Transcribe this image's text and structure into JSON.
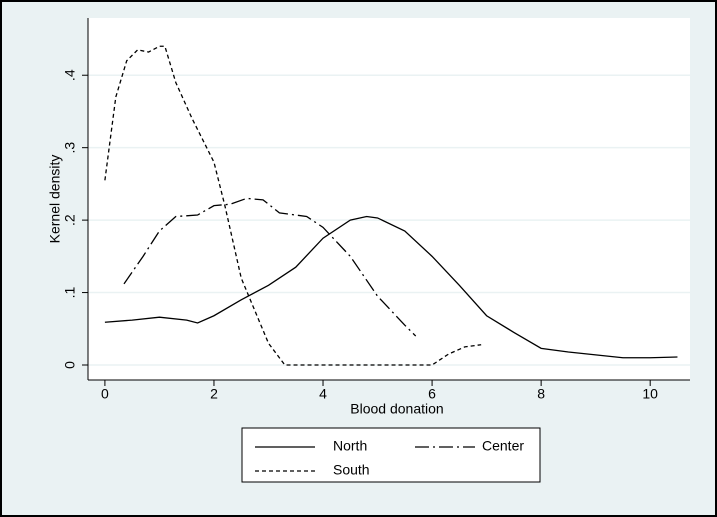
{
  "chart_data": {
    "type": "line",
    "xlabel": "Blood donation",
    "ylabel": "Kernel density",
    "xlim": [
      -0.31,
      10.73
    ],
    "ylim": [
      -0.0207,
      0.479
    ],
    "xticks": [
      0,
      2,
      4,
      6,
      8,
      10
    ],
    "yticks": [
      0,
      {
        "value": 0.1,
        "label": ".1"
      },
      {
        "value": 0.2,
        "label": ".2"
      },
      {
        "value": 0.3,
        "label": ".3"
      },
      {
        "value": 0.4,
        "label": ".4"
      }
    ],
    "grid": true,
    "legend": "bottom",
    "series": [
      {
        "name": "North",
        "color": "#000000",
        "dash": "solid",
        "x": [
          0,
          0.5,
          1,
          1.5,
          1.7,
          2,
          2.5,
          3,
          3.5,
          4,
          4.5,
          4.8,
          5,
          5.5,
          6,
          6.5,
          7,
          7.5,
          8,
          8.5,
          9,
          9.5,
          10,
          10.5
        ],
        "values": [
          0.059,
          0.062,
          0.066,
          0.062,
          0.058,
          0.068,
          0.09,
          0.11,
          0.135,
          0.175,
          0.2,
          0.205,
          0.203,
          0.185,
          0.15,
          0.11,
          0.068,
          0.045,
          0.023,
          0.018,
          0.014,
          0.01,
          0.01,
          0.011
        ]
      },
      {
        "name": "Center",
        "color": "#000000",
        "dash": "dashdot",
        "x": [
          0.35,
          0.7,
          1,
          1.3,
          1.7,
          2,
          2.3,
          2.6,
          2.9,
          3.2,
          3.7,
          4,
          4.5,
          5,
          5.5,
          5.7
        ],
        "values": [
          0.112,
          0.15,
          0.185,
          0.205,
          0.207,
          0.22,
          0.222,
          0.23,
          0.228,
          0.21,
          0.205,
          0.19,
          0.15,
          0.095,
          0.055,
          0.04
        ]
      },
      {
        "name": "South",
        "color": "#000000",
        "dash": "dash",
        "x": [
          0,
          0.2,
          0.4,
          0.6,
          0.8,
          1,
          1.1,
          1.3,
          1.6,
          2,
          2.2,
          2.5,
          3,
          3.3,
          4,
          5,
          6,
          6.3,
          6.6,
          6.9
        ],
        "values": [
          0.255,
          0.37,
          0.42,
          0.435,
          0.432,
          0.44,
          0.44,
          0.39,
          0.34,
          0.28,
          0.22,
          0.12,
          0.03,
          0,
          0,
          0,
          0,
          0.015,
          0.025,
          0.028
        ]
      }
    ]
  }
}
